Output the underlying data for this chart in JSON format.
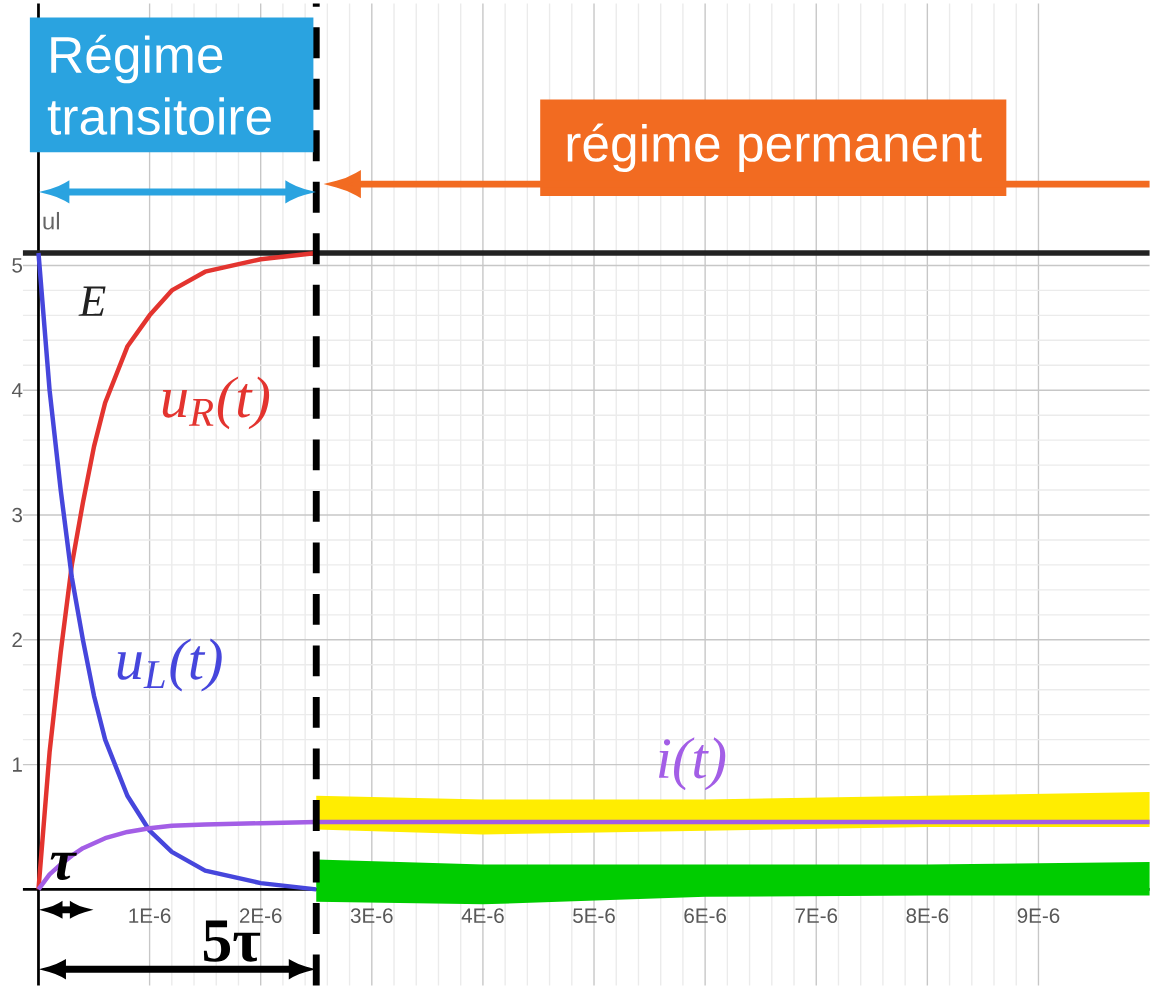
{
  "chart_data": {
    "type": "line",
    "ylabel": "ul",
    "xlim": [
      -1.4e-07,
      1e-05
    ],
    "ylim": [
      -0.77,
      7.1
    ],
    "xticks": [
      {
        "value": 1e-06,
        "label": "1E-6"
      },
      {
        "value": 2e-06,
        "label": "2E-6"
      },
      {
        "value": 3e-06,
        "label": "3E-6"
      },
      {
        "value": 4e-06,
        "label": "4E-6"
      },
      {
        "value": 5e-06,
        "label": "5E-6"
      },
      {
        "value": 6e-06,
        "label": "6E-6"
      },
      {
        "value": 7e-06,
        "label": "7E-6"
      },
      {
        "value": 8e-06,
        "label": "8E-6"
      },
      {
        "value": 9e-06,
        "label": "9E-6"
      }
    ],
    "yticks": [
      1,
      2,
      3,
      4,
      5
    ],
    "grid": true,
    "marker": "none",
    "line_style": "solid",
    "series": [
      {
        "name": "u$_{R}$(t)",
        "color": "#e3342f",
        "x": [
          0,
          1e-07,
          2e-07,
          3e-07,
          4e-07,
          5e-07,
          6e-07,
          8e-07,
          1e-06,
          1.2e-06,
          1.5e-06,
          2e-06,
          2.5e-06
        ],
        "values": [
          0,
          1.1,
          1.9,
          2.6,
          3.1,
          3.55,
          3.9,
          4.35,
          4.6,
          4.8,
          4.95,
          5.05,
          5.1
        ]
      },
      {
        "name": "u$_{L}$(t)",
        "color": "#4646dc",
        "x": [
          0,
          1e-07,
          2e-07,
          3e-07,
          4e-07,
          5e-07,
          6e-07,
          8e-07,
          1e-06,
          1.2e-06,
          1.5e-06,
          2e-06,
          2.5e-06,
          4e-06,
          6e-06,
          8e-06,
          1e-05
        ],
        "values": [
          5.1,
          4.0,
          3.2,
          2.5,
          2.0,
          1.55,
          1.2,
          0.75,
          0.47,
          0.3,
          0.15,
          0.05,
          0.0,
          null,
          null,
          null,
          null
        ],
        "lower": [
          null,
          null,
          null,
          null,
          null,
          null,
          null,
          null,
          null,
          null,
          null,
          null,
          -0.1,
          -0.12,
          -0.06,
          -0.05,
          -0.05
        ],
        "upper": [
          null,
          null,
          null,
          null,
          null,
          null,
          null,
          null,
          null,
          null,
          null,
          null,
          0.24,
          0.2,
          0.2,
          0.2,
          0.22
        ]
      },
      {
        "name": "i(t)",
        "color": "#a35ee6",
        "x": [
          0,
          1e-07,
          2e-07,
          3e-07,
          4e-07,
          5e-07,
          6e-07,
          8e-07,
          1e-06,
          1.2e-06,
          1.5e-06,
          2e-06,
          2.5e-06,
          4e-06,
          6e-06,
          8e-06,
          1e-05
        ],
        "values": [
          0,
          0.12,
          0.2,
          0.27,
          0.33,
          0.37,
          0.41,
          0.46,
          0.49,
          0.51,
          0.52,
          0.53,
          0.54,
          0.54,
          0.54,
          0.54,
          0.54
        ],
        "lower": [
          null,
          null,
          null,
          null,
          null,
          null,
          null,
          null,
          null,
          null,
          null,
          null,
          0.48,
          0.44,
          0.47,
          0.5,
          0.5
        ],
        "upper": [
          null,
          null,
          null,
          null,
          null,
          null,
          null,
          null,
          null,
          null,
          null,
          null,
          0.75,
          0.72,
          0.72,
          0.75,
          0.78
        ]
      }
    ],
    "ref_lines": [
      {
        "axis": "y",
        "value": 5.1,
        "label": "E",
        "color": "#222222"
      },
      {
        "axis": "x",
        "value": 2.5e-06,
        "color": "#000000",
        "line_style": "dashed"
      }
    ],
    "annotations": [
      "Régime transitoire",
      "régime permanent",
      "τ",
      "5τ"
    ]
  }
}
